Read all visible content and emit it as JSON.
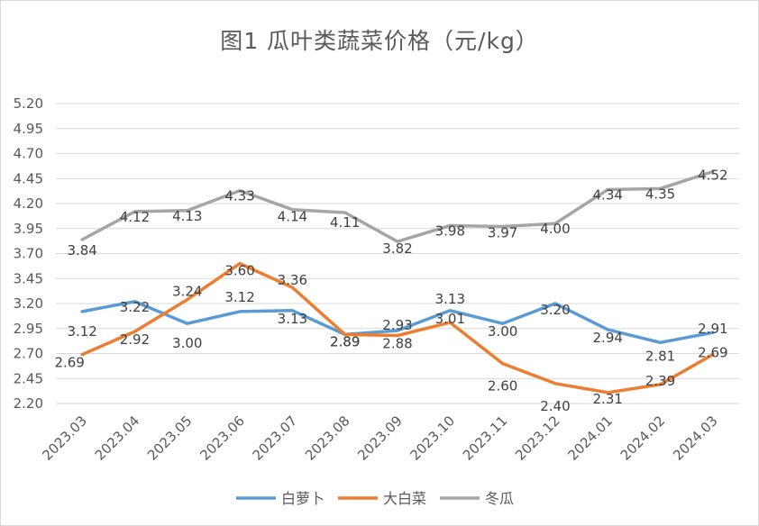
{
  "chart_data": {
    "type": "line",
    "title": "图1  瓜叶类蔬菜价格（元/kg）",
    "categories": [
      "2023.03",
      "2023.04",
      "2023.05",
      "2023.06",
      "2023.07",
      "2023.08",
      "2023.09",
      "2023.10",
      "2023.11",
      "2023.12",
      "2024.01",
      "2024.02",
      "2024.03"
    ],
    "ylim": [
      2.2,
      5.2
    ],
    "yticks": [
      "2.20",
      "2.45",
      "2.70",
      "2.95",
      "3.20",
      "3.45",
      "3.70",
      "3.95",
      "4.20",
      "4.45",
      "4.70",
      "4.95",
      "5.20"
    ],
    "grid": true,
    "legend_position": "bottom",
    "series": [
      {
        "name": "白萝卜",
        "color": "#5b9bd5",
        "values": [
          3.12,
          3.22,
          3.0,
          3.12,
          3.13,
          2.89,
          2.93,
          3.13,
          3.0,
          3.2,
          2.94,
          2.81,
          2.91
        ],
        "labels": [
          "3.12",
          "3.22",
          "3.00",
          "3.12",
          "3.13",
          "2.89",
          "2.93",
          "3.13",
          "3.00",
          "3.20",
          "2.94",
          "2.81",
          "2.91"
        ]
      },
      {
        "name": "大白菜",
        "color": "#ed7d31",
        "values": [
          2.69,
          2.92,
          3.24,
          3.6,
          3.36,
          2.89,
          2.88,
          3.01,
          2.6,
          2.4,
          2.31,
          2.39,
          2.69
        ],
        "labels": [
          "2.69",
          "2.92",
          "3.24",
          "3.60",
          "3.36",
          "2.89",
          "2.88",
          "3.01",
          "2.60",
          "2.40",
          "2.31",
          "2.39",
          "2.69"
        ]
      },
      {
        "name": "冬瓜",
        "color": "#a5a5a5",
        "values": [
          3.84,
          4.12,
          4.13,
          4.33,
          4.14,
          4.11,
          3.82,
          3.98,
          3.97,
          4.0,
          4.34,
          4.35,
          4.52
        ],
        "labels": [
          "3.84",
          "4.12",
          "4.13",
          "4.33",
          "4.14",
          "4.11",
          "3.82",
          "3.98",
          "3.97",
          "4.00",
          "4.34",
          "4.35",
          "4.52"
        ]
      }
    ]
  }
}
